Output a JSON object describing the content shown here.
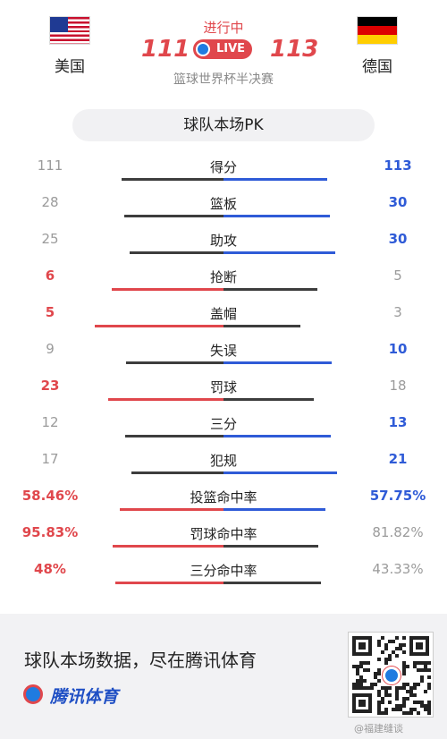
{
  "header": {
    "status": "进行中",
    "live": "LIVE",
    "match_title": "篮球世界杯半决赛",
    "home": {
      "name": "美国",
      "score": "111",
      "flag": "usa-flag"
    },
    "away": {
      "name": "德国",
      "score": "113",
      "flag": "germany-flag"
    }
  },
  "pk_title": "球队本场PK",
  "colors": {
    "red": "#e0474c",
    "blue": "#2f5bd7",
    "dark": "#3d3d3d",
    "gray": "#9b9b9b"
  },
  "stats": [
    {
      "label": "得分",
      "home": "111",
      "away": "113",
      "home_share": 0.496,
      "away_share": 0.504,
      "winner": "away"
    },
    {
      "label": "篮板",
      "home": "28",
      "away": "30",
      "home_share": 0.483,
      "away_share": 0.517,
      "winner": "away"
    },
    {
      "label": "助攻",
      "home": "25",
      "away": "30",
      "home_share": 0.455,
      "away_share": 0.545,
      "winner": "away"
    },
    {
      "label": "抢断",
      "home": "6",
      "away": "5",
      "home_share": 0.545,
      "away_share": 0.455,
      "winner": "home"
    },
    {
      "label": "盖帽",
      "home": "5",
      "away": "3",
      "home_share": 0.625,
      "away_share": 0.375,
      "winner": "home"
    },
    {
      "label": "失误",
      "home": "9",
      "away": "10",
      "home_share": 0.474,
      "away_share": 0.526,
      "winner": "away"
    },
    {
      "label": "罚球",
      "home": "23",
      "away": "18",
      "home_share": 0.561,
      "away_share": 0.439,
      "winner": "home"
    },
    {
      "label": "三分",
      "home": "12",
      "away": "13",
      "home_share": 0.48,
      "away_share": 0.52,
      "winner": "away"
    },
    {
      "label": "犯规",
      "home": "17",
      "away": "21",
      "home_share": 0.447,
      "away_share": 0.553,
      "winner": "away"
    },
    {
      "label": "投篮命中率",
      "home": "58.46%",
      "away": "57.75%",
      "home_share": 0.503,
      "away_share": 0.497,
      "winner": "both"
    },
    {
      "label": "罚球命中率",
      "home": "95.83%",
      "away": "81.82%",
      "home_share": 0.54,
      "away_share": 0.46,
      "winner": "home"
    },
    {
      "label": "三分命中率",
      "home": "48%",
      "away": "43.33%",
      "home_share": 0.526,
      "away_share": 0.474,
      "winner": "home"
    }
  ],
  "footer": {
    "slogan": "球队本场数据，尽在腾讯体育",
    "brand": "腾讯体育",
    "watermark": "@福建缝谈"
  }
}
